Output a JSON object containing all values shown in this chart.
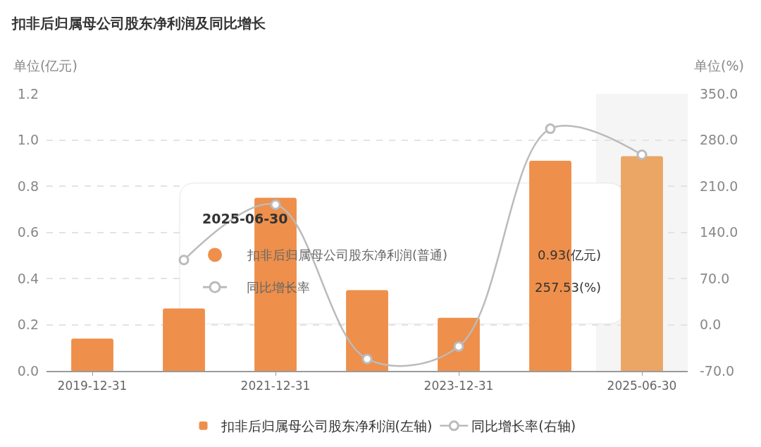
{
  "chart_data": {
    "type": "bar",
    "title": "扣非后归属母公司股东净利润及同比增长",
    "ylabel": "单位(亿元)",
    "y2label": "单位(%)",
    "categories": [
      "2019-12-31",
      null,
      "2021-12-31",
      null,
      "2023-12-31",
      null,
      "2025-06-30"
    ],
    "series": [
      {
        "name": "扣非后归属母公司股东净利润(左轴)",
        "type": "bar",
        "color": "#ee8f4b",
        "colors": [
          "#ee8f4b",
          "#ee8f4b",
          "#ee8f4b",
          "#ee8f4b",
          "#ee8f4b",
          "#ee8f4b",
          "#eba565"
        ],
        "values": [
          0.14,
          0.27,
          0.75,
          0.35,
          0.23,
          0.91,
          0.93
        ]
      },
      {
        "name": "同比增长率(右轴)",
        "type": "line",
        "axis": "y2",
        "color": "#bbbbbb",
        "values": [
          null,
          98,
          182,
          -52,
          -33,
          297,
          257.53
        ]
      }
    ],
    "ylim": [
      0,
      1.2
    ],
    "yticks": [
      {
        "value": 0,
        "label": "0.0"
      },
      0.2,
      0.4,
      0.6,
      0.8,
      {
        "value": 1,
        "label": "1.0"
      },
      1.2
    ],
    "y2lim": [
      -70,
      350
    ],
    "y2ticks": [
      {
        "value": -70,
        "label": "-70.0"
      },
      {
        "value": 0,
        "label": "0.0"
      },
      {
        "value": 70,
        "label": "70.0"
      },
      {
        "value": 140,
        "label": "140.0"
      },
      {
        "value": 210,
        "label": "210.0"
      },
      {
        "value": 280,
        "label": "280.0"
      },
      {
        "value": 350,
        "label": "350.0"
      }
    ],
    "bands": [
      {
        "axis": "x",
        "from": "2025-06-30",
        "to": "2025-06-30",
        "color": "#f5f5f5"
      }
    ],
    "annotations": [
      "2025-06-30",
      "扣非后归属母公司股东净利润(普通)",
      "0.93(亿元)",
      "同比增长率",
      "257.53(%)"
    ],
    "grid": "y",
    "legend": "bottom",
    "marker": "circle"
  }
}
